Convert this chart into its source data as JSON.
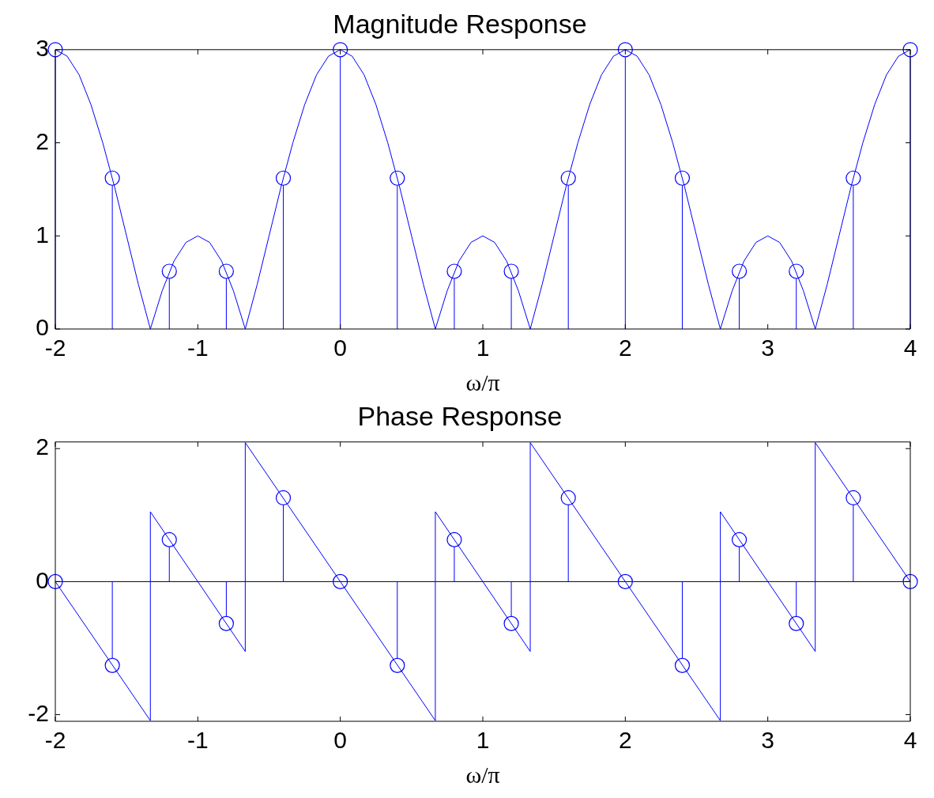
{
  "chart_data": [
    {
      "type": "line",
      "title": "Magnitude Response",
      "xlabel": "ω/π",
      "xlim": [
        -2,
        4
      ],
      "xticks": [
        -2,
        -1,
        0,
        1,
        2,
        3,
        4
      ],
      "ylim": [
        0,
        3
      ],
      "yticks": [
        0,
        1,
        2,
        3
      ],
      "series": [
        {
          "color": "#0000ff",
          "marker": "none",
          "x": [
            -2,
            -1.917,
            -1.833,
            -1.75,
            -1.667,
            -1.583,
            -1.5,
            -1.417,
            -1.333,
            -1.25,
            -1.167,
            -1.083,
            -1,
            -0.917,
            -0.833,
            -0.75,
            -0.667,
            -0.583,
            -0.5,
            -0.417,
            -0.333,
            -0.25,
            -0.167,
            -0.083,
            0,
            0.083,
            0.167,
            0.25,
            0.333,
            0.417,
            0.5,
            0.583,
            0.667,
            0.75,
            0.833,
            0.917,
            1,
            1.083,
            1.167,
            1.25,
            1.333,
            1.417,
            1.5,
            1.583,
            1.667,
            1.75,
            1.833,
            1.917,
            2,
            2.083,
            2.167,
            2.25,
            2.333,
            2.417,
            2.5,
            2.583,
            2.667,
            2.75,
            2.833,
            2.917,
            3,
            3.083,
            3.167,
            3.25,
            3.333,
            3.417,
            3.5,
            3.583,
            3.667,
            3.75,
            3.833,
            3.917,
            4
          ],
          "values": [
            3,
            2.93,
            2.73,
            2.41,
            2,
            1.52,
            1,
            0.48,
            0,
            0.41,
            0.73,
            0.93,
            1,
            0.93,
            0.73,
            0.41,
            0,
            0.48,
            1,
            1.52,
            2,
            2.41,
            2.73,
            2.93,
            3,
            2.93,
            2.73,
            2.41,
            2,
            1.52,
            1,
            0.48,
            0,
            0.41,
            0.73,
            0.93,
            1,
            0.93,
            0.73,
            0.41,
            0,
            0.48,
            1,
            1.52,
            2,
            2.41,
            2.73,
            2.93,
            3,
            2.93,
            2.73,
            2.41,
            2,
            1.52,
            1,
            0.48,
            0,
            0.41,
            0.73,
            0.93,
            1,
            0.93,
            0.73,
            0.41,
            0,
            0.48,
            1,
            1.52,
            2,
            2.41,
            2.73,
            2.93,
            3
          ]
        },
        {
          "type": "lollipop",
          "color": "#0000ff",
          "marker": "circle",
          "x": [
            -2,
            -1.6,
            -1.2,
            -0.8,
            -0.4,
            0,
            0.4,
            0.8,
            1.2,
            1.6,
            2,
            2.4,
            2.8,
            3.2,
            3.6,
            4
          ],
          "values": [
            3,
            1.62,
            0.62,
            0.62,
            1.62,
            3,
            1.62,
            0.62,
            0.62,
            1.62,
            3,
            1.62,
            0.62,
            0.62,
            1.62,
            3
          ]
        }
      ]
    },
    {
      "type": "line",
      "title": "Phase Response",
      "xlabel": "ω/π",
      "xlim": [
        -2,
        4
      ],
      "xticks": [
        -2,
        -1,
        0,
        1,
        2,
        3,
        4
      ],
      "ylim": [
        -2.1,
        2.1
      ],
      "yticks": [
        -2,
        0,
        2
      ],
      "ref_lines": [
        {
          "axis": "y",
          "value": 0,
          "color": "#000000"
        }
      ],
      "series": [
        {
          "color": "#0000ff",
          "marker": "none",
          "x": [
            -2,
            -1.333,
            -1.333,
            -0.667,
            -0.667,
            0,
            0.667,
            0.667,
            1.333,
            1.333,
            2,
            2.667,
            2.667,
            3.333,
            3.333,
            4
          ],
          "values": [
            0,
            -2.09,
            1.05,
            -1.05,
            2.09,
            0,
            -2.09,
            1.05,
            -1.05,
            2.09,
            0,
            -2.09,
            1.05,
            -1.05,
            2.09,
            0
          ]
        },
        {
          "type": "lollipop",
          "color": "#0000ff",
          "marker": "circle",
          "x": [
            -2,
            -1.6,
            -1.2,
            -0.8,
            -0.4,
            0,
            0.4,
            0.8,
            1.2,
            1.6,
            2,
            2.4,
            2.8,
            3.2,
            3.6,
            4
          ],
          "values": [
            0,
            -1.26,
            0.63,
            -0.63,
            1.26,
            0,
            -1.26,
            0.63,
            -0.63,
            1.26,
            0,
            -1.26,
            0.63,
            -0.63,
            1.26,
            0
          ]
        }
      ]
    }
  ]
}
